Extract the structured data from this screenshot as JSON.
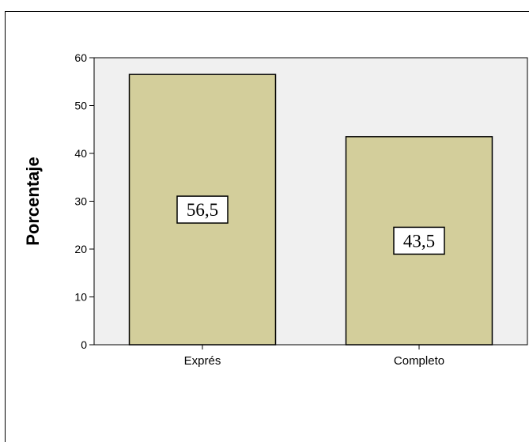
{
  "chart_data": {
    "type": "bar",
    "categories": [
      "Exprés",
      "Completo"
    ],
    "values": [
      56.5,
      43.5
    ],
    "data_labels": [
      "56,5",
      "43,5"
    ],
    "title": "",
    "xlabel": "",
    "ylabel": "Porcentaje",
    "ylim": [
      0,
      60
    ],
    "yticks": [
      0,
      10,
      20,
      30,
      40,
      50,
      60
    ],
    "ytick_labels": [
      "0",
      "10",
      "20",
      "30",
      "40",
      "50",
      "60"
    ],
    "grid": false,
    "legend": "none",
    "colors": {
      "plot_background": "#f0f0f0",
      "bar_fill": "#d3ce9b",
      "bar_stroke": "#000000",
      "label_box_fill": "#ffffff"
    }
  }
}
